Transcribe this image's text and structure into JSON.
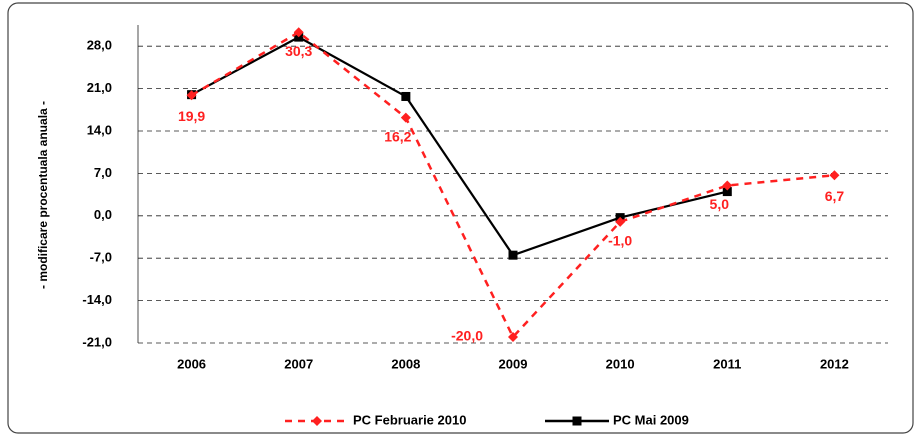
{
  "chart_data": {
    "type": "line",
    "y_label": "- modificare procentuala anuala -",
    "categories": [
      "2006",
      "2007",
      "2008",
      "2009",
      "2010",
      "2011",
      "2012"
    ],
    "series": [
      {
        "name": "PC Februarie 2010",
        "color": "#ff2020",
        "dashed": true,
        "marker": "diamond",
        "values": [
          19.9,
          30.3,
          16.2,
          -20.0,
          -1.0,
          5.0,
          6.7
        ],
        "value_labels": [
          "19,9",
          "30,3",
          "16,2",
          "-20,0",
          "-1,0",
          "5,0",
          "6,7"
        ]
      },
      {
        "name": "PC Mai 2009",
        "color": "#000000",
        "dashed": false,
        "marker": "square",
        "values": [
          20.0,
          29.5,
          19.7,
          -6.5,
          -0.3,
          4.0,
          null
        ]
      }
    ],
    "ylim": [
      -21,
      31.5
    ],
    "yticks": [
      {
        "value": -21,
        "label": "-21,0"
      },
      {
        "value": -14,
        "label": "-14,0"
      },
      {
        "value": -7,
        "label": "-7,0"
      },
      {
        "value": 0,
        "label": "0,0"
      },
      {
        "value": 7,
        "label": "7,0"
      },
      {
        "value": 14,
        "label": "14,0"
      },
      {
        "value": 21,
        "label": "21,0"
      },
      {
        "value": 28,
        "label": "28,0"
      }
    ],
    "grid": true,
    "legend": "bottom"
  }
}
